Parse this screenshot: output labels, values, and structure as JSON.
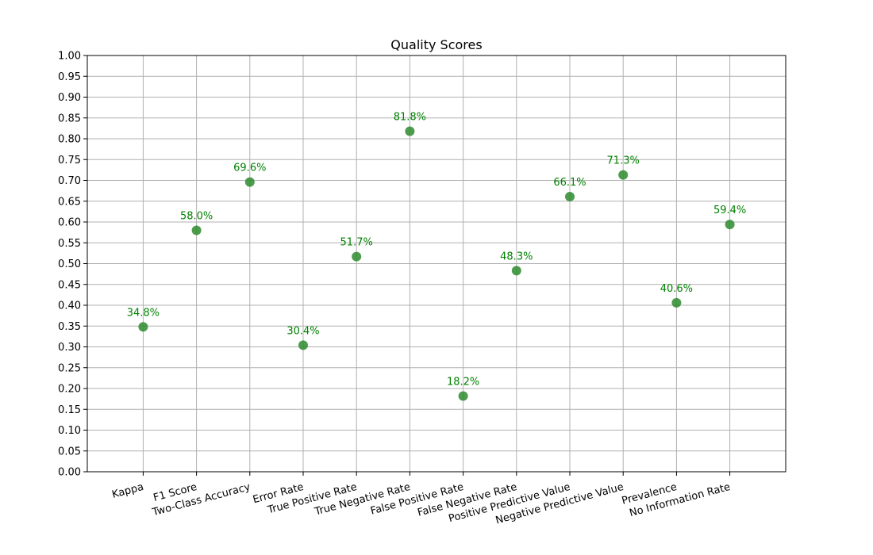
{
  "chart_data": {
    "type": "scatter",
    "title": "Quality Scores",
    "xlabel": "",
    "ylabel": "",
    "categories": [
      "Kappa",
      "F1 Score",
      "Two-Class Accuracy",
      "Error Rate",
      "True Positive Rate",
      "True Negative Rate",
      "False Positive Rate",
      "False Negative Rate",
      "Positive Predictive Value",
      "Negative Predictive Value",
      "Prevalence",
      "No Information Rate"
    ],
    "values": [
      0.348,
      0.58,
      0.696,
      0.304,
      0.517,
      0.818,
      0.182,
      0.483,
      0.661,
      0.713,
      0.406,
      0.594
    ],
    "data_labels": [
      "34.8%",
      "58.0%",
      "69.6%",
      "30.4%",
      "51.7%",
      "81.8%",
      "18.2%",
      "48.3%",
      "66.1%",
      "71.3%",
      "40.6%",
      "59.4%"
    ],
    "yticks": [
      "0.00",
      "0.05",
      "0.10",
      "0.15",
      "0.20",
      "0.25",
      "0.30",
      "0.35",
      "0.40",
      "0.45",
      "0.50",
      "0.55",
      "0.60",
      "0.65",
      "0.70",
      "0.75",
      "0.80",
      "0.85",
      "0.90",
      "0.95",
      "1.00"
    ],
    "ylim": [
      0,
      1
    ],
    "grid": true,
    "legend": "none",
    "colors": {
      "marker": "#2e8b2e",
      "label": "#008000",
      "grid": "#b0b0b0",
      "axis": "#000000"
    }
  }
}
